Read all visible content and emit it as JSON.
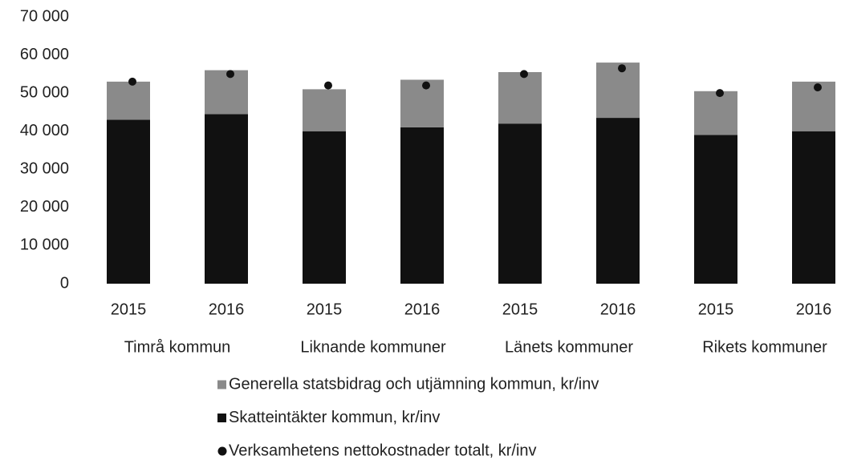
{
  "chart_data": {
    "type": "bar",
    "categories": [
      "2015",
      "2016",
      "2015",
      "2016",
      "2015",
      "2016",
      "2015",
      "2016"
    ],
    "groups": [
      "Timrå kommun",
      "Liknande kommuner",
      "Länets kommuner",
      "Rikets kommuner"
    ],
    "series": [
      {
        "name": "Generella statsbidrag och utjämning kommun, kr/inv",
        "color": "#8a8a8a",
        "type": "bar",
        "values": [
          10000,
          11500,
          11000,
          12500,
          13500,
          14500,
          11500,
          13000
        ]
      },
      {
        "name": "Skatteintäkter kommun, kr/inv",
        "color": "#111111",
        "type": "bar",
        "values": [
          43000,
          44500,
          40000,
          41000,
          42000,
          43500,
          39000,
          40000
        ]
      },
      {
        "name": "Verksamhetens nettokostnader totalt, kr/inv",
        "color": "#111111",
        "type": "scatter",
        "values": [
          53000,
          55000,
          52000,
          52000,
          55000,
          56500,
          50000,
          51500
        ]
      }
    ],
    "ylim": [
      0,
      70000
    ],
    "yticks": [
      0,
      {
        "value": 10000,
        "label": "10 000"
      },
      {
        "value": 20000,
        "label": "20 000"
      },
      {
        "value": 30000,
        "label": "30 000"
      },
      {
        "value": 40000,
        "label": "40 000"
      },
      {
        "value": 50000,
        "label": "50 000"
      },
      {
        "value": 60000,
        "label": "60 000"
      },
      {
        "value": 70000,
        "label": "70 000"
      }
    ],
    "grid": false
  }
}
